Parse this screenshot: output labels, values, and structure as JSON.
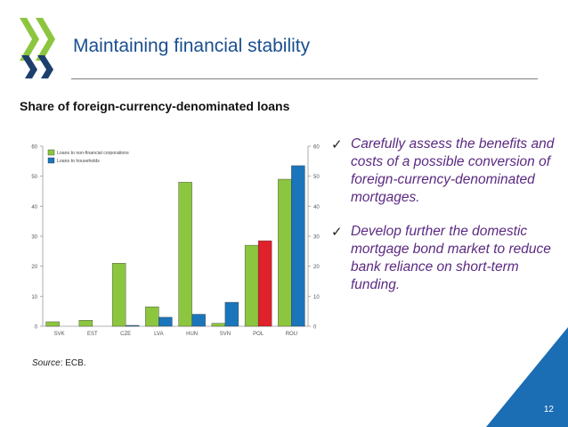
{
  "header": {
    "title": "Maintaining financial stability"
  },
  "colors": {
    "title": "#1a4f8f",
    "logo_green": "#8cc63f",
    "logo_dark": "#1d3f6e",
    "series_nfc": "#8cc63f",
    "series_hh": "#1b75bb",
    "highlight": "#e0202a",
    "corner": "#1b6db4"
  },
  "slide": {
    "subtitle": "Share of foreign-currency-denominated loans",
    "source_label": "Source",
    "source_text": ": ECB.",
    "page_number": "12",
    "bullet_icon": "check-icon",
    "bullets": [
      "Carefully assess the benefits and costs of a possible conversion of foreign-currency-denominated mortgages.",
      "Develop further the domestic mortgage bond market to reduce bank reliance on short-term funding."
    ]
  },
  "chart_data": {
    "type": "bar",
    "title": "",
    "xlabel": "",
    "ylabel": "",
    "categories": [
      "SVK",
      "EST",
      "CZE",
      "LVA",
      "HUN",
      "SVN",
      "POL",
      "ROU"
    ],
    "series": [
      {
        "name": "Loans to non-financial corporations",
        "values": [
          1.5,
          2,
          21,
          6.5,
          48,
          1,
          27,
          49
        ]
      },
      {
        "name": "Loans to households",
        "values": [
          0,
          0,
          0.3,
          3,
          4,
          8,
          28.5,
          53.5
        ]
      }
    ],
    "highlight": {
      "category": "POL",
      "series": 1
    },
    "ylim": [
      0,
      60
    ],
    "yticks": [
      0,
      10,
      20,
      30,
      40,
      50,
      60
    ],
    "y_axis_sides": [
      "left",
      "right"
    ],
    "legend_position": "top-left",
    "grid": false
  }
}
